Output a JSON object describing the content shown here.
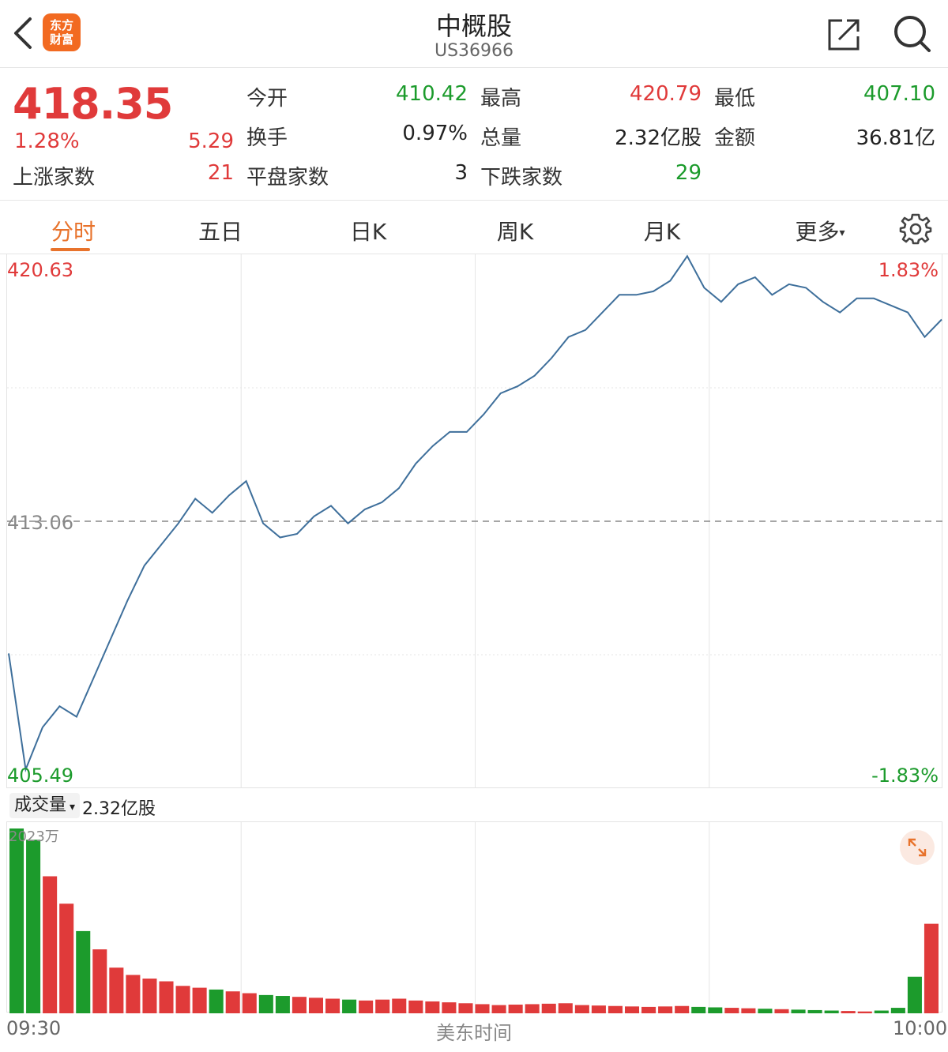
{
  "header": {
    "title": "中概股",
    "code": "US36966",
    "logo_text": "东方财富",
    "back_icon": "chevron-left-icon",
    "share_icon": "share-icon",
    "search_icon": "search-icon"
  },
  "quote": {
    "price": "418.35",
    "change_pct": "1.28%",
    "change_amt": "5.29",
    "rows": [
      [
        {
          "label": "今开",
          "value": "410.42",
          "color": "green"
        },
        {
          "label": "最高",
          "value": "420.79",
          "color": "red"
        },
        {
          "label": "最低",
          "value": "407.10",
          "color": "green"
        }
      ],
      [
        {
          "label": "换手",
          "value": "0.97%",
          "color": "black"
        },
        {
          "label": "总量",
          "value": "2.32亿股",
          "color": "black"
        },
        {
          "label": "金额",
          "value": "36.81亿",
          "color": "black"
        }
      ],
      [
        {
          "label": "平盘家数",
          "value": "3",
          "color": "black"
        },
        {
          "label": "下跌家数",
          "value": "29",
          "color": "green"
        }
      ]
    ],
    "up_label": "上涨家数",
    "up_value": "21"
  },
  "tabs": [
    {
      "label": "分时",
      "active": true
    },
    {
      "label": "五日",
      "active": false
    },
    {
      "label": "日K",
      "active": false
    },
    {
      "label": "周K",
      "active": false
    },
    {
      "label": "月K",
      "active": false
    },
    {
      "label": "更多",
      "active": false
    }
  ],
  "more_caret": "▾",
  "chart": {
    "y_max": "420.63",
    "y_mid": "413.06",
    "y_min": "405.49",
    "pct_max": "1.83%",
    "pct_min": "-1.83%",
    "colors": {
      "line": "#3e6f9b",
      "up": "#e03a3a",
      "down": "#1c9b2c",
      "grid": "#e6e6e6"
    }
  },
  "volume": {
    "select_label": "成交量",
    "select_caret": "▾",
    "total": "2.32亿股",
    "max_label": "2023万"
  },
  "time_axis": {
    "start": "09:30",
    "middle": "美东时间",
    "end": "10:00"
  },
  "chart_data": {
    "type": "line",
    "title": "",
    "xlabel": "",
    "ylabel": "",
    "x_start": "09:30",
    "x_end": "10:00",
    "ylim": [
      405.49,
      420.63
    ],
    "baseline": 413.06,
    "series": [
      {
        "values": [
          409.3,
          406.0,
          407.2,
          407.8,
          407.5,
          408.6,
          409.7,
          410.8,
          411.8,
          412.4,
          413.0,
          413.7,
          413.3,
          413.8,
          414.2,
          413.0,
          412.6,
          412.7,
          413.2,
          413.5,
          413.0,
          413.4,
          413.6,
          414.0,
          414.7,
          415.2,
          415.6,
          415.6,
          416.1,
          416.7,
          416.9,
          417.2,
          417.7,
          418.3,
          418.5,
          419.0,
          419.5,
          419.5,
          419.6,
          419.9,
          420.6,
          419.7,
          419.3,
          419.8,
          420.0,
          419.5,
          419.8,
          419.7,
          419.3,
          419.0,
          419.4,
          419.4,
          419.2,
          419.0,
          418.3,
          418.8
        ]
      }
    ],
    "volume": [
      2023,
      1900,
      1500,
      1200,
      900,
      700,
      500,
      420,
      380,
      350,
      300,
      280,
      260,
      240,
      220,
      200,
      190,
      180,
      170,
      160,
      150,
      140,
      150,
      160,
      140,
      130,
      120,
      110,
      100,
      90,
      95,
      100,
      105,
      110,
      90,
      85,
      80,
      75,
      70,
      75,
      80,
      70,
      65,
      60,
      55,
      50,
      45,
      40,
      35,
      30,
      25,
      20,
      30,
      60,
      400,
      980
    ]
  }
}
